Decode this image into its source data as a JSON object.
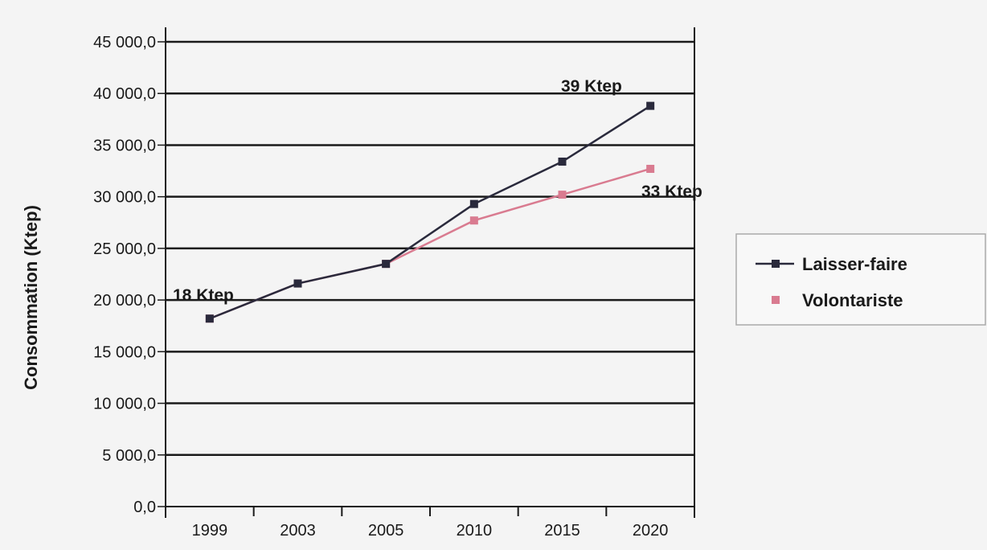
{
  "chart_data": {
    "type": "line",
    "title": "",
    "xlabel": "",
    "ylabel": "Consommation (Ktep)",
    "categories": [
      "1999",
      "2003",
      "2005",
      "2010",
      "2015",
      "2020"
    ],
    "ylim": [
      0,
      45000
    ],
    "yticks": [
      "0,0",
      "5 000,0",
      "10 000,0",
      "15 000,0",
      "20 000,0",
      "25 000,0",
      "30 000,0",
      "35 000,0",
      "40 000,0",
      "45 000,0"
    ],
    "grid": true,
    "legend_position": "right",
    "series": [
      {
        "name": "Laisser-faire",
        "color": "#2a2a3c",
        "marker": "square",
        "values": [
          18200,
          21600,
          23500,
          29300,
          33400,
          38800
        ]
      },
      {
        "name": "Volontariste",
        "color": "#d97b90",
        "marker": "square",
        "values": [
          18200,
          21600,
          23500,
          27700,
          30200,
          32700
        ]
      }
    ],
    "annotations": [
      {
        "text": "18 Ktep"
      },
      {
        "text": "39 Ktep"
      },
      {
        "text": "33 Ktep"
      }
    ]
  }
}
